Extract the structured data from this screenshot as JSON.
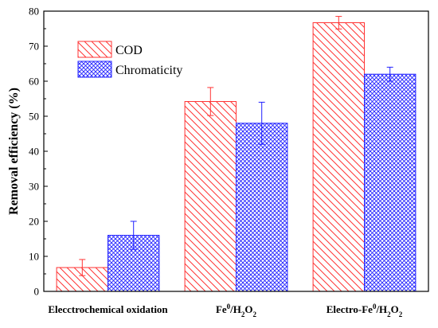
{
  "chart_data": {
    "type": "bar",
    "title": "",
    "xlabel": "",
    "ylabel": "Removal efficiency (%)",
    "ylim": [
      0,
      80
    ],
    "yticks": [
      0,
      10,
      20,
      30,
      40,
      50,
      60,
      70,
      80
    ],
    "categories": [
      {
        "label": "Elecctrochemical oxidation",
        "parts": [
          {
            "t": "Elecctrochemical oxidation"
          }
        ]
      },
      {
        "label": "Fe0/H2O2",
        "parts": [
          {
            "t": "Fe"
          },
          {
            "t": "0",
            "s": "sup"
          },
          {
            "t": "/H"
          },
          {
            "t": "2",
            "s": "sub"
          },
          {
            "t": "O"
          },
          {
            "t": "2",
            "s": "sub"
          }
        ]
      },
      {
        "label": "Electro-Fe0/H2O2",
        "parts": [
          {
            "t": "Electro-Fe"
          },
          {
            "t": "0",
            "s": "sup"
          },
          {
            "t": "/H"
          },
          {
            "t": "2",
            "s": "sub"
          },
          {
            "t": "O"
          },
          {
            "t": "2",
            "s": "sub"
          }
        ]
      }
    ],
    "series": [
      {
        "name": "COD",
        "values": [
          6.8,
          54.2,
          76.7
        ],
        "errors": [
          2.3,
          4.0,
          1.8
        ],
        "color": "#ff3333",
        "pattern": "diagonal-hatch"
      },
      {
        "name": "Chromaticity",
        "values": [
          16.0,
          48.0,
          62.0
        ],
        "errors": [
          4.0,
          6.0,
          2.0
        ],
        "color": "#2222ff",
        "pattern": "crosshatch"
      }
    ],
    "legend": "top-left",
    "grid": false
  }
}
